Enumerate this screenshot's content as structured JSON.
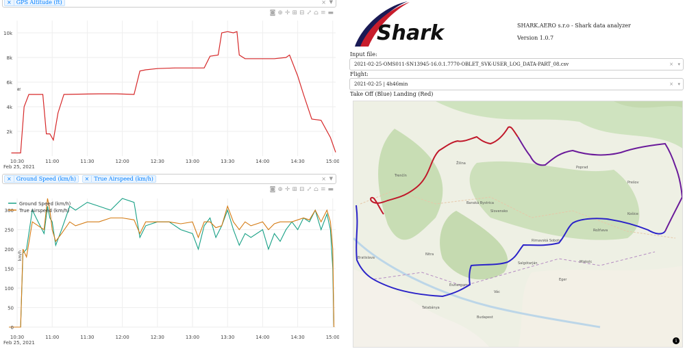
{
  "chart1": {
    "picker_tag": "GPS Altitude (ft)",
    "picker_clear": "×",
    "y_ticks": [
      "2k",
      "4k",
      "6k",
      "8k",
      "10k"
    ],
    "x_ticks": [
      "10:30",
      "11:00",
      "11:30",
      "12:00",
      "12:30",
      "13:00",
      "13:30",
      "14:00",
      "14:30",
      "15:00"
    ],
    "x_sub": "Feb 25, 2021",
    "y_label": "ft",
    "color": "#d62728"
  },
  "chart2": {
    "picker_tags": [
      "Ground Speed (km/h)",
      "True Airspeed (km/h)"
    ],
    "picker_clear": "×",
    "y_ticks": [
      "0",
      "50",
      "100",
      "150",
      "200",
      "250",
      "300"
    ],
    "x_ticks": [
      "10:30",
      "11:00",
      "11:30",
      "12:00",
      "12:30",
      "13:00",
      "13:30",
      "14:00",
      "14:30",
      "15:00"
    ],
    "x_sub": "Feb 25, 2021",
    "y_label": "km/h",
    "legend": [
      "Ground Speed (km/h)",
      "True Airspeed (km/h)"
    ],
    "colors": [
      "#17a085",
      "#d47a12"
    ]
  },
  "chart_data": [
    {
      "type": "line",
      "title": "",
      "ylabel": "ft",
      "xlabel": "",
      "ylim": [
        0,
        11000
      ],
      "series": [
        {
          "name": "GPS Altitude (ft)",
          "x": [
            "10:25",
            "10:33",
            "10:34",
            "10:36",
            "10:40",
            "10:52",
            "10:55",
            "10:58",
            "11:01",
            "11:05",
            "11:10",
            "11:40",
            "11:55",
            "12:10",
            "12:15",
            "12:20",
            "12:30",
            "12:45",
            "13:10",
            "13:15",
            "13:22",
            "13:25",
            "13:30",
            "13:35",
            "13:38",
            "13:40",
            "13:45",
            "13:55",
            "14:10",
            "14:20",
            "14:23",
            "14:30",
            "14:35",
            "14:42",
            "14:50",
            "14:58",
            "15:03"
          ],
          "y": [
            250,
            250,
            1500,
            4000,
            5000,
            5000,
            1800,
            1800,
            1300,
            3500,
            5000,
            5050,
            5050,
            5000,
            6900,
            7000,
            7100,
            7150,
            7150,
            8100,
            8200,
            10000,
            10100,
            10000,
            10100,
            8200,
            7900,
            7900,
            7900,
            8000,
            8200,
            6500,
            5000,
            3000,
            2900,
            1500,
            300
          ]
        }
      ]
    },
    {
      "type": "line",
      "title": "",
      "ylabel": "km/h",
      "xlabel": "",
      "ylim": [
        0,
        330
      ],
      "x": [
        "10:23",
        "10:28",
        "10:33",
        "10:35",
        "10:38",
        "10:43",
        "10:48",
        "10:53",
        "10:56",
        "10:58",
        "11:00",
        "11:03",
        "11:08",
        "11:15",
        "11:20",
        "11:30",
        "11:40",
        "11:50",
        "12:00",
        "12:10",
        "12:15",
        "12:20",
        "12:30",
        "12:40",
        "12:50",
        "13:00",
        "13:05",
        "13:10",
        "13:15",
        "13:20",
        "13:25",
        "13:30",
        "13:35",
        "13:40",
        "13:45",
        "13:50",
        "14:00",
        "14:05",
        "14:10",
        "14:15",
        "14:20",
        "14:25",
        "14:30",
        "14:35",
        "14:40",
        "14:45",
        "14:50",
        "14:55",
        "14:58",
        "15:00",
        "15:01"
      ],
      "series": [
        {
          "name": "Ground Speed (km/h)",
          "values": [
            0,
            0,
            0,
            190,
            200,
            300,
            270,
            240,
            310,
            280,
            270,
            210,
            250,
            310,
            300,
            320,
            310,
            300,
            330,
            320,
            230,
            260,
            270,
            270,
            250,
            240,
            200,
            260,
            280,
            230,
            260,
            300,
            250,
            210,
            240,
            230,
            250,
            200,
            240,
            220,
            250,
            270,
            250,
            280,
            270,
            300,
            250,
            290,
            250,
            150,
            0
          ]
        },
        {
          "name": "True Airspeed (km/h)",
          "values": [
            0,
            0,
            0,
            200,
            180,
            270,
            260,
            250,
            330,
            300,
            250,
            220,
            240,
            270,
            260,
            270,
            270,
            280,
            280,
            275,
            240,
            270,
            270,
            270,
            265,
            270,
            230,
            270,
            270,
            255,
            260,
            310,
            270,
            250,
            270,
            260,
            270,
            250,
            265,
            270,
            270,
            270,
            275,
            280,
            275,
            300,
            270,
            300,
            270,
            200,
            0
          ]
        }
      ]
    }
  ],
  "app": {
    "logo_text": "Shark",
    "title": "SHARK.AERO s.r.o - Shark data analyzer",
    "version": "Version 1.0.7",
    "input_label": "Input file:",
    "input_value": "2021-02-25-OMS011-SN13945-16.0.1.7770-OBLET_SVK-USER_LOG_DATA-PART_08.csv",
    "flight_label": "Flight:",
    "flight_value": "2021-02-25 | 4h46min",
    "map_title": "Take Off (Blue) Landing (Red)",
    "clear": "×",
    "arrow": "▾",
    "info": "i"
  },
  "map": {
    "labels": [
      "Bratislava",
      "Budapest",
      "Slovensko",
      "Banská Bystrica",
      "Košice",
      "Prešov",
      "Poprad",
      "Nitra",
      "Žilina",
      "Trenčín",
      "Miskolc",
      "Eger",
      "Salgótarján",
      "Tatabánya",
      "Esztergom",
      "Vác",
      "Rimavská Sobota",
      "Rožňava"
    ],
    "route_colors": [
      "#2a22c8",
      "#6a1a9a",
      "#c0182a"
    ]
  }
}
